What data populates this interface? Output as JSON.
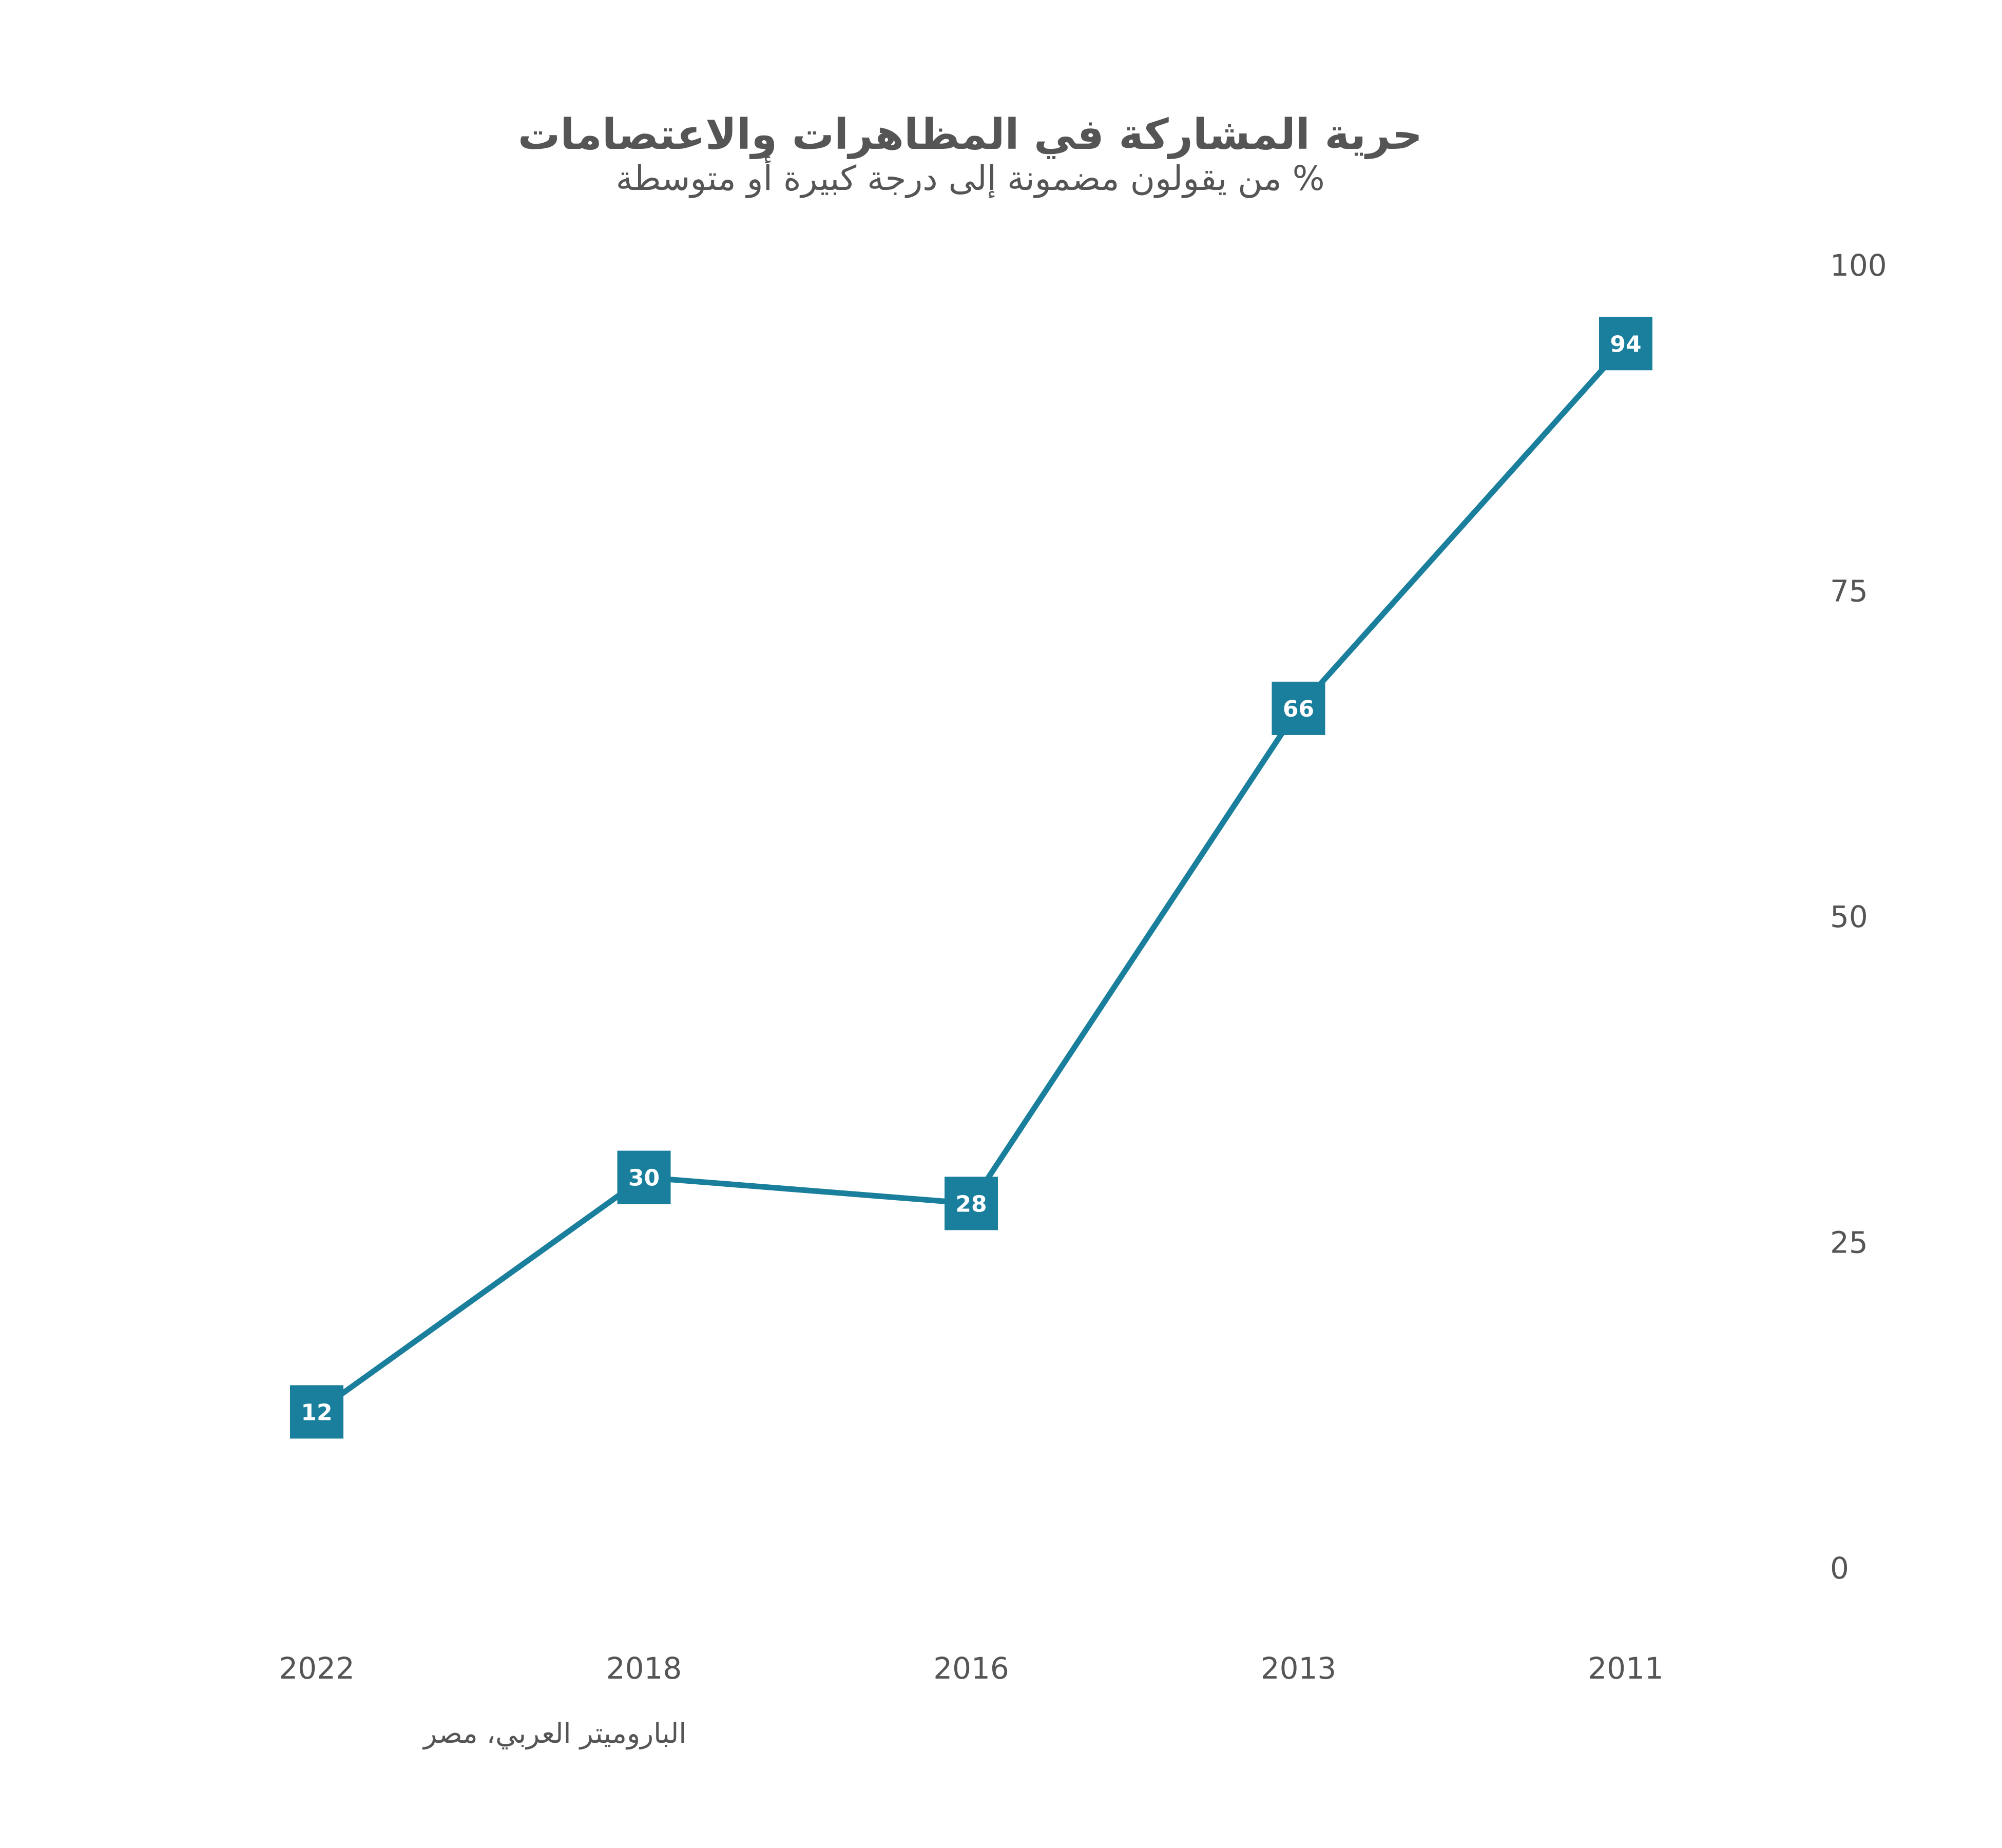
{
  "chart_data": {
    "type": "line",
    "title": "حرية المشاركة في المظاهرات والاعتصامات",
    "subtitle": "% من يقولون مضمونة إلى درجة كبيرة أو متوسطة",
    "categories": [
      "2022",
      "2018",
      "2016",
      "2013",
      "2011"
    ],
    "series": [
      {
        "values": [
          12,
          30,
          28,
          66,
          94
        ],
        "color": "#1a7f9c"
      }
    ],
    "ylim": [
      0,
      100
    ],
    "yticks": [
      0,
      25,
      50,
      75,
      100
    ],
    "y_axis_side": "right",
    "grid": false,
    "legend": "none",
    "caption": "الباروميتر العربي، مصر"
  }
}
